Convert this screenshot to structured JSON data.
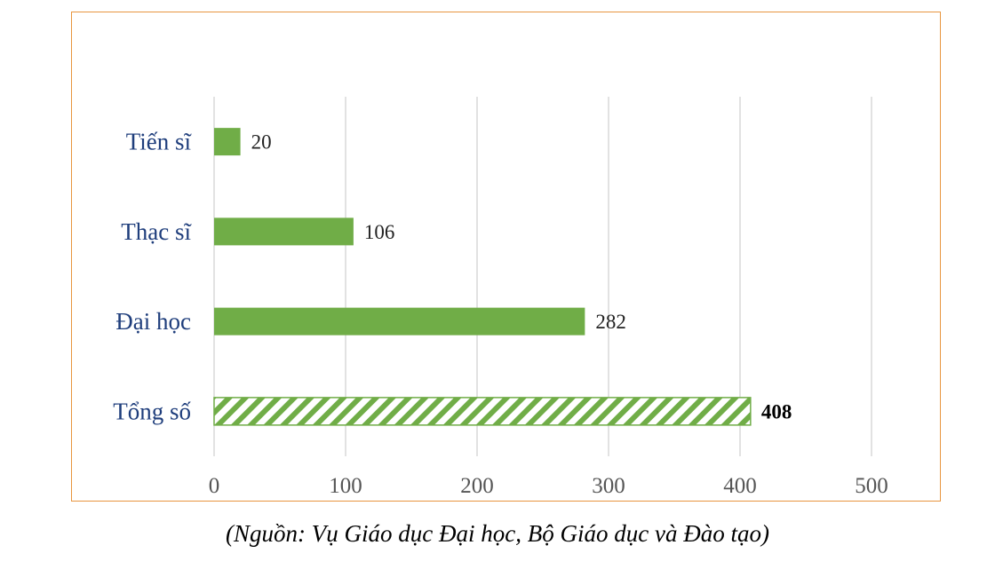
{
  "chart_data": {
    "type": "bar",
    "orientation": "horizontal",
    "categories": [
      "Tiến sĩ",
      "Thạc sĩ",
      "Đại học",
      "Tổng số"
    ],
    "values": [
      20,
      106,
      282,
      408
    ],
    "data_labels": [
      "20",
      "106",
      "282",
      "408"
    ],
    "highlight_category": "Tổng số",
    "xlim": [
      0,
      500
    ],
    "xticks": [
      0,
      100,
      200,
      300,
      400,
      500
    ],
    "xtick_labels": [
      "0",
      "100",
      "200",
      "300",
      "400",
      "500"
    ],
    "grid": "vertical",
    "colors": {
      "bar": "#70ad47",
      "highlight_pattern": "#70ad47",
      "category_text": "#1f3e7c",
      "frame": "#e8953f",
      "grid": "#d9d9d9"
    }
  },
  "source_note": "(Nguồn: Vụ Giáo dục Đại học, Bộ Giáo dục và Đào tạo)"
}
